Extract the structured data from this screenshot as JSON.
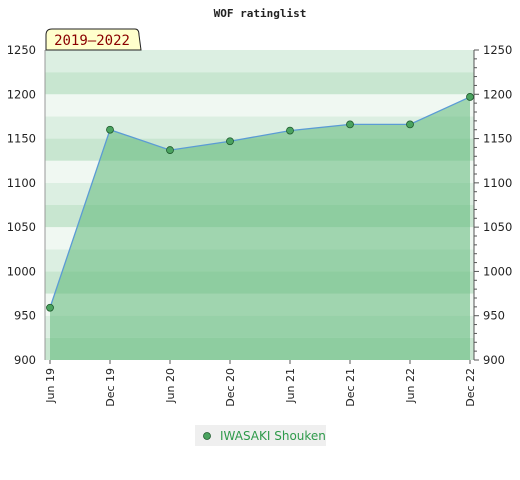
{
  "chart_data": {
    "type": "area",
    "title": "WOF ratinglist",
    "period_badge": "2019–2022",
    "xlabel": "",
    "ylabel": "",
    "x": [
      "Jun 19",
      "Dec 19",
      "Jun 20",
      "Dec 20",
      "Jun 21",
      "Dec 21",
      "Jun 22",
      "Dec 22"
    ],
    "series": [
      {
        "name": "IWASAKI Shouken",
        "values": [
          959,
          1160,
          1137,
          1147,
          1159,
          1166,
          1166,
          1197
        ]
      }
    ],
    "ylim": [
      900,
      1250
    ],
    "yticks": [
      900,
      950,
      1000,
      1050,
      1100,
      1150,
      1200,
      1250
    ],
    "y_axes": [
      "left",
      "right"
    ],
    "grid": "horizontal bands",
    "legend_position": "bottom-center",
    "colors": {
      "fill": "#5fb878",
      "line": "#5b9bd5",
      "marker": "#4aa35f",
      "legend_text": "#2e9a4a",
      "badge_bg": "#ffffcc",
      "badge_text": "#8a0000"
    }
  }
}
